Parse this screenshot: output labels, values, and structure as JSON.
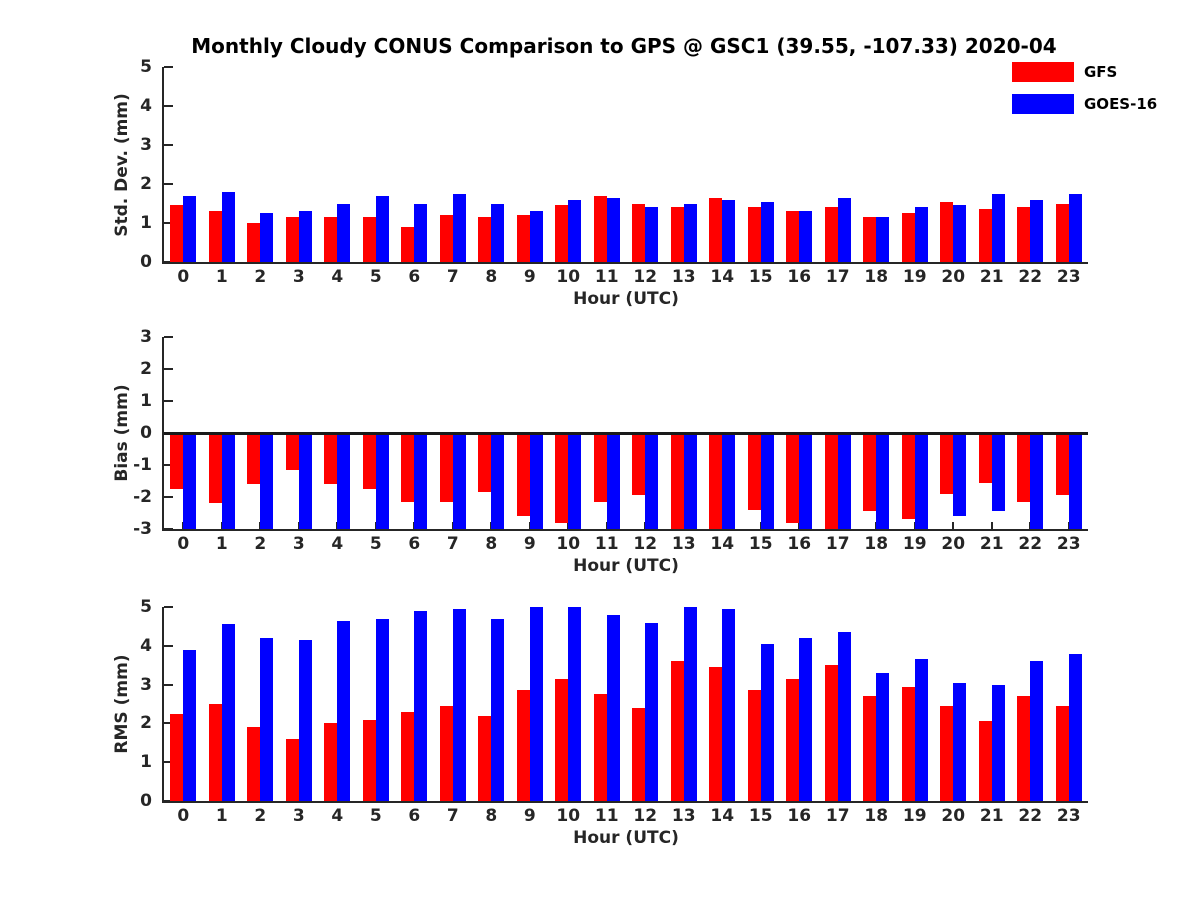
{
  "title": "Monthly Cloudy CONUS Comparison to GPS @ GSC1 (39.55, -107.33) 2020-04",
  "legend": {
    "items": [
      {
        "label": "GFS",
        "color": "#ff0000"
      },
      {
        "label": "GOES-16",
        "color": "#0000ff"
      }
    ]
  },
  "colors": {
    "gfs_red": "#ff0000",
    "goes_blue": "#0000ff",
    "axis": "#262626",
    "title": "#000000"
  },
  "chart_data": [
    {
      "type": "bar",
      "ylabel": "Std. Dev. (mm)",
      "xlabel": "Hour (UTC)",
      "ylim": [
        0,
        5
      ],
      "yticks": [
        0,
        1,
        2,
        3,
        4,
        5
      ],
      "grid": false,
      "legend_position": "top-right",
      "categories": [
        0,
        1,
        2,
        3,
        4,
        5,
        6,
        7,
        8,
        9,
        10,
        11,
        12,
        13,
        14,
        15,
        16,
        17,
        18,
        19,
        20,
        21,
        22,
        23
      ],
      "series": [
        {
          "name": "GFS",
          "color": "#ff0000",
          "values": [
            1.45,
            1.3,
            1.0,
            1.15,
            1.15,
            1.15,
            0.9,
            1.2,
            1.15,
            1.2,
            1.45,
            1.7,
            1.5,
            1.4,
            1.65,
            1.4,
            1.3,
            1.4,
            1.15,
            1.25,
            1.55,
            1.35,
            1.4,
            1.5
          ]
        },
        {
          "name": "GOES-16",
          "color": "#0000ff",
          "values": [
            1.7,
            1.8,
            1.25,
            1.3,
            1.5,
            1.7,
            1.5,
            1.75,
            1.5,
            1.3,
            1.6,
            1.65,
            1.4,
            1.5,
            1.6,
            1.55,
            1.3,
            1.65,
            1.15,
            1.4,
            1.45,
            1.75,
            1.6,
            1.75
          ]
        }
      ]
    },
    {
      "type": "bar",
      "ylabel": "Bias (mm)",
      "xlabel": "Hour (UTC)",
      "ylim": [
        -3,
        3
      ],
      "yticks": [
        -3,
        -2,
        -1,
        0,
        1,
        2,
        3
      ],
      "grid": false,
      "categories": [
        0,
        1,
        2,
        3,
        4,
        5,
        6,
        7,
        8,
        9,
        10,
        11,
        12,
        13,
        14,
        15,
        16,
        17,
        18,
        19,
        20,
        21,
        22,
        23
      ],
      "series": [
        {
          "name": "GFS",
          "color": "#ff0000",
          "values": [
            -1.75,
            -2.2,
            -1.6,
            -1.15,
            -1.6,
            -1.75,
            -2.15,
            -2.15,
            -1.85,
            -2.6,
            -2.8,
            -2.15,
            -1.95,
            -3.0,
            -3.0,
            -2.4,
            -2.8,
            -3.0,
            -2.45,
            -2.7,
            -1.9,
            -1.55,
            -2.15,
            -1.95
          ]
        },
        {
          "name": "GOES-16",
          "color": "#0000ff",
          "values": [
            -3.0,
            -3.0,
            -3.0,
            -3.0,
            -3.0,
            -3.0,
            -3.0,
            -3.0,
            -3.0,
            -3.0,
            -3.0,
            -3.0,
            -3.0,
            -3.0,
            -3.0,
            -3.0,
            -3.0,
            -3.0,
            -3.0,
            -3.0,
            -2.6,
            -2.45,
            -3.0,
            -3.0
          ]
        }
      ]
    },
    {
      "type": "bar",
      "ylabel": "RMS (mm)",
      "xlabel": "Hour (UTC)",
      "ylim": [
        0,
        5
      ],
      "yticks": [
        0,
        1,
        2,
        3,
        4,
        5
      ],
      "grid": false,
      "categories": [
        0,
        1,
        2,
        3,
        4,
        5,
        6,
        7,
        8,
        9,
        10,
        11,
        12,
        13,
        14,
        15,
        16,
        17,
        18,
        19,
        20,
        21,
        22,
        23
      ],
      "series": [
        {
          "name": "GFS",
          "color": "#ff0000",
          "values": [
            2.25,
            2.5,
            1.9,
            1.6,
            2.0,
            2.1,
            2.3,
            2.45,
            2.2,
            2.85,
            3.15,
            2.75,
            2.4,
            3.6,
            3.45,
            2.85,
            3.15,
            3.5,
            2.7,
            2.95,
            2.45,
            2.05,
            2.7,
            2.45
          ]
        },
        {
          "name": "GOES-16",
          "color": "#0000ff",
          "values": [
            3.9,
            4.55,
            4.2,
            4.15,
            4.65,
            4.7,
            4.9,
            4.95,
            4.7,
            5.0,
            5.0,
            4.8,
            4.6,
            5.0,
            4.95,
            4.05,
            4.2,
            4.35,
            3.3,
            3.65,
            3.05,
            3.0,
            3.6,
            3.8
          ]
        }
      ]
    }
  ]
}
